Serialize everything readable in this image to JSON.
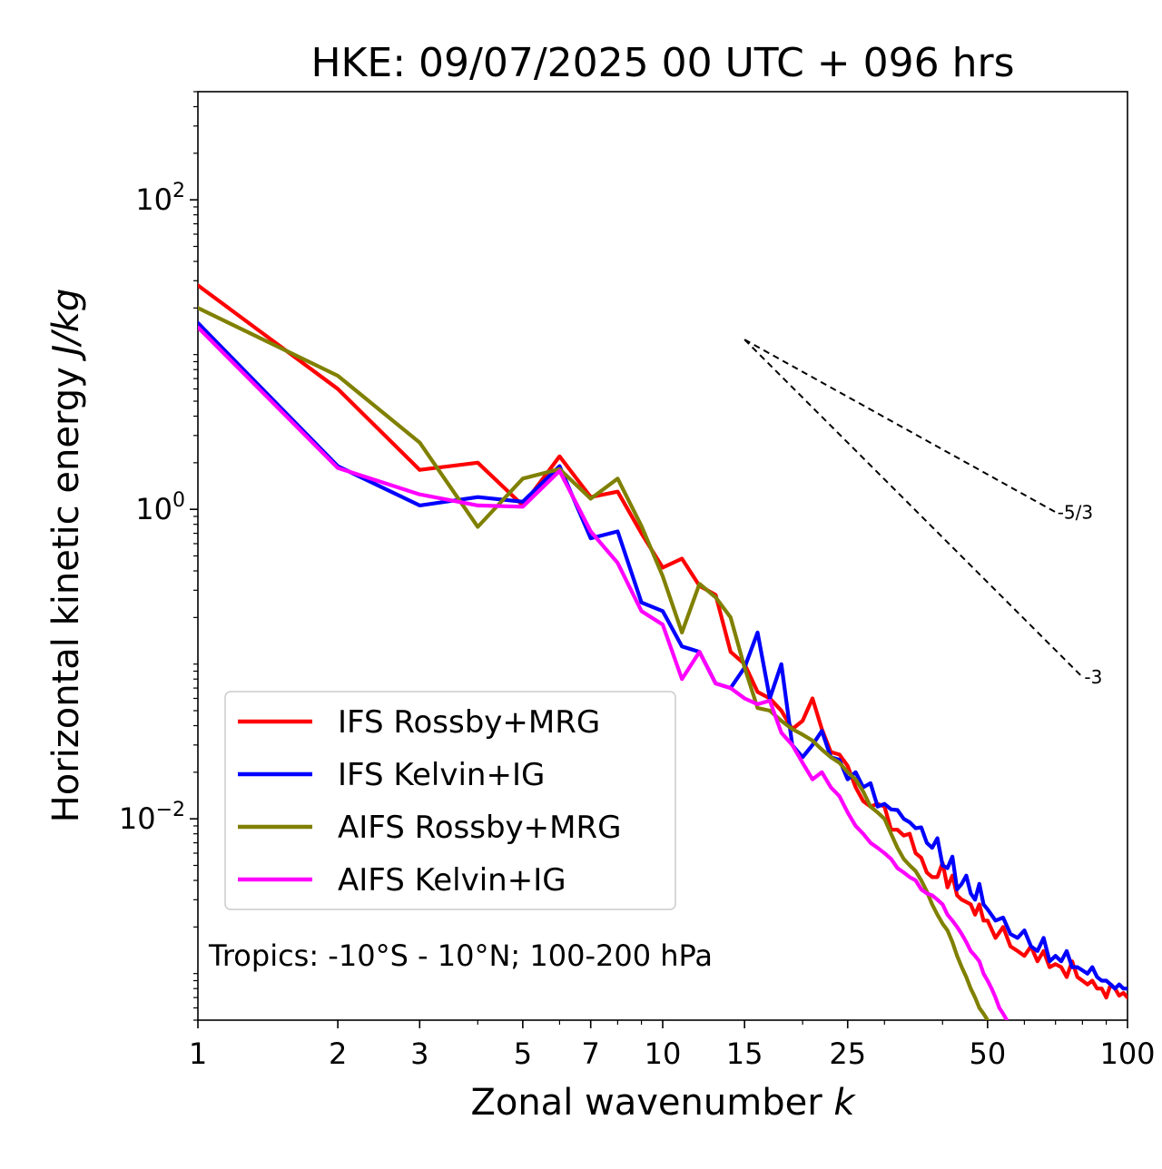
{
  "chart_data": {
    "type": "line",
    "title": "HKE: 09/07/2025 00 UTC + 096 hrs",
    "xlabel": "Zonal wavenumber",
    "xlabel_var": "k",
    "ylabel": "Horizontal kinetic energy",
    "ylabel_unit": "J/kg",
    "xscale": "log",
    "yscale": "log",
    "xlim": [
      1,
      100
    ],
    "ylim": [
      0.0005,
      500
    ],
    "x_ticks": [
      1,
      2,
      3,
      5,
      7,
      10,
      15,
      25,
      50,
      100
    ],
    "x_tick_labels": [
      "1",
      "2",
      "3",
      "5",
      "7",
      "10",
      "15",
      "25",
      "50",
      "100"
    ],
    "y_ticks": [
      0.01,
      1,
      100
    ],
    "y_tick_labels": [
      {
        "base": "10",
        "exp": "−2"
      },
      {
        "base": "10",
        "exp": "0"
      },
      {
        "base": "10",
        "exp": "2"
      }
    ],
    "legend_position": "lower-left",
    "annotation": "Tropics: -10°S - 10°N; 100-200 hPa",
    "reference_lines": [
      {
        "label": "-5/3",
        "slope": -1.6667,
        "x0": 15,
        "y0": 12.5,
        "x1": 70
      },
      {
        "label": "-3",
        "slope": -3,
        "x0": 15,
        "y0": 12.5,
        "x1": 80
      }
    ],
    "series": [
      {
        "name": "IFS Rossby+MRG",
        "color": "#ff0000",
        "x": [
          1,
          2,
          3,
          4,
          5,
          6,
          7,
          8,
          9,
          10,
          11,
          12,
          13,
          14,
          15,
          16,
          17,
          18,
          19,
          20,
          21,
          22,
          23,
          24,
          25,
          26,
          27,
          28,
          29,
          30,
          31,
          32,
          33,
          34,
          35,
          36,
          37,
          38,
          39,
          40,
          41,
          42,
          43,
          44,
          45,
          46,
          47,
          48,
          49,
          50,
          52,
          54,
          56,
          58,
          60,
          62,
          64,
          66,
          68,
          70,
          72,
          74,
          76,
          78,
          80,
          82,
          84,
          86,
          88,
          90,
          92,
          94,
          96,
          98,
          100
        ],
        "y": [
          28,
          6,
          1.8,
          2,
          1.06,
          2.2,
          1.2,
          1.3,
          0.7,
          0.42,
          0.48,
          0.32,
          0.28,
          0.12,
          0.1,
          0.066,
          0.06,
          0.05,
          0.038,
          0.043,
          0.06,
          0.038,
          0.027,
          0.026,
          0.022,
          0.016,
          0.013,
          0.012,
          0.0125,
          0.012,
          0.0085,
          0.0085,
          0.0078,
          0.008,
          0.006,
          0.0056,
          0.0045,
          0.0042,
          0.0042,
          0.0052,
          0.0036,
          0.0043,
          0.0032,
          0.003,
          0.0029,
          0.0028,
          0.0024,
          0.0028,
          0.0022,
          0.0022,
          0.0017,
          0.002,
          0.0015,
          0.0014,
          0.0013,
          0.0015,
          0.0012,
          0.0014,
          0.0011,
          0.00115,
          0.0011,
          0.00095,
          0.0012,
          0.00095,
          0.0009,
          0.00085,
          0.0009,
          0.0008,
          0.0008,
          0.0007,
          0.00085,
          0.0008,
          0.00072,
          0.00075,
          0.0007
        ]
      },
      {
        "name": "IFS Kelvin+IG",
        "color": "#0000ff",
        "x": [
          1,
          2,
          3,
          4,
          5,
          6,
          7,
          8,
          9,
          10,
          11,
          12,
          13,
          14,
          15,
          16,
          17,
          18,
          19,
          20,
          21,
          22,
          23,
          24,
          25,
          26,
          27,
          28,
          29,
          30,
          31,
          32,
          33,
          34,
          35,
          36,
          37,
          38,
          39,
          40,
          41,
          42,
          43,
          44,
          45,
          46,
          47,
          48,
          49,
          50,
          52,
          54,
          56,
          58,
          60,
          62,
          64,
          66,
          68,
          70,
          72,
          74,
          76,
          78,
          80,
          82,
          84,
          86,
          88,
          90,
          92,
          94,
          96,
          98,
          100
        ],
        "y": [
          16,
          1.9,
          1.06,
          1.2,
          1.12,
          1.9,
          0.65,
          0.72,
          0.25,
          0.22,
          0.13,
          0.12,
          0.075,
          0.07,
          0.095,
          0.16,
          0.06,
          0.1,
          0.03,
          0.025,
          0.03,
          0.037,
          0.025,
          0.024,
          0.018,
          0.02,
          0.016,
          0.017,
          0.012,
          0.0125,
          0.0115,
          0.0114,
          0.01,
          0.0095,
          0.0087,
          0.0088,
          0.007,
          0.0065,
          0.0075,
          0.005,
          0.0048,
          0.0057,
          0.0035,
          0.0038,
          0.0043,
          0.0033,
          0.003,
          0.0038,
          0.0028,
          0.0026,
          0.0022,
          0.0023,
          0.0018,
          0.0017,
          0.0019,
          0.0015,
          0.0014,
          0.0017,
          0.0012,
          0.0013,
          0.0012,
          0.0014,
          0.0011,
          0.0011,
          0.00105,
          0.001,
          0.0011,
          0.00095,
          0.0009,
          0.0009,
          0.00085,
          0.0008,
          0.00085,
          0.0008,
          0.0008
        ]
      },
      {
        "name": "AIFS Rossby+MRG",
        "color": "#808000",
        "x": [
          1,
          2,
          3,
          4,
          5,
          6,
          7,
          8,
          9,
          10,
          11,
          12,
          13,
          14,
          15,
          16,
          17,
          18,
          19,
          20,
          21,
          22,
          23,
          24,
          25,
          26,
          27,
          28,
          29,
          30,
          31,
          32,
          33,
          34,
          35,
          36,
          37,
          38,
          39,
          40,
          41,
          42,
          43,
          44,
          45,
          46,
          47,
          48,
          49,
          50
        ],
        "y": [
          20,
          7.3,
          2.7,
          0.77,
          1.58,
          1.82,
          1.17,
          1.58,
          0.78,
          0.37,
          0.16,
          0.33,
          0.27,
          0.2,
          0.095,
          0.052,
          0.05,
          0.043,
          0.038,
          0.035,
          0.032,
          0.028,
          0.025,
          0.023,
          0.02,
          0.018,
          0.015,
          0.012,
          0.011,
          0.01,
          0.008,
          0.0065,
          0.0055,
          0.005,
          0.0046,
          0.004,
          0.0034,
          0.0028,
          0.0024,
          0.0021,
          0.0019,
          0.0016,
          0.0013,
          0.0011,
          0.00095,
          0.0008,
          0.0007,
          0.0006,
          0.00055,
          0.0005
        ]
      },
      {
        "name": "AIFS Kelvin+IG",
        "color": "#ff00ff",
        "x": [
          1,
          2,
          3,
          4,
          5,
          6,
          7,
          8,
          9,
          10,
          11,
          12,
          13,
          14,
          15,
          16,
          17,
          18,
          19,
          20,
          21,
          22,
          23,
          24,
          25,
          26,
          27,
          28,
          29,
          30,
          31,
          32,
          33,
          34,
          35,
          36,
          37,
          38,
          39,
          40,
          41,
          42,
          43,
          44,
          45,
          46,
          47,
          48,
          49,
          50,
          51,
          52,
          53,
          54,
          55
        ],
        "y": [
          15,
          1.85,
          1.25,
          1.06,
          1.04,
          1.77,
          0.72,
          0.45,
          0.22,
          0.18,
          0.08,
          0.12,
          0.075,
          0.07,
          0.06,
          0.055,
          0.058,
          0.036,
          0.03,
          0.023,
          0.018,
          0.02,
          0.016,
          0.014,
          0.011,
          0.009,
          0.008,
          0.007,
          0.0065,
          0.006,
          0.0055,
          0.0048,
          0.0045,
          0.0042,
          0.004,
          0.0035,
          0.0033,
          0.0032,
          0.003,
          0.0028,
          0.0024,
          0.0022,
          0.002,
          0.0018,
          0.0016,
          0.0014,
          0.0013,
          0.0012,
          0.001,
          0.0009,
          0.0008,
          0.0007,
          0.0006,
          0.00055,
          0.0005
        ]
      }
    ]
  }
}
